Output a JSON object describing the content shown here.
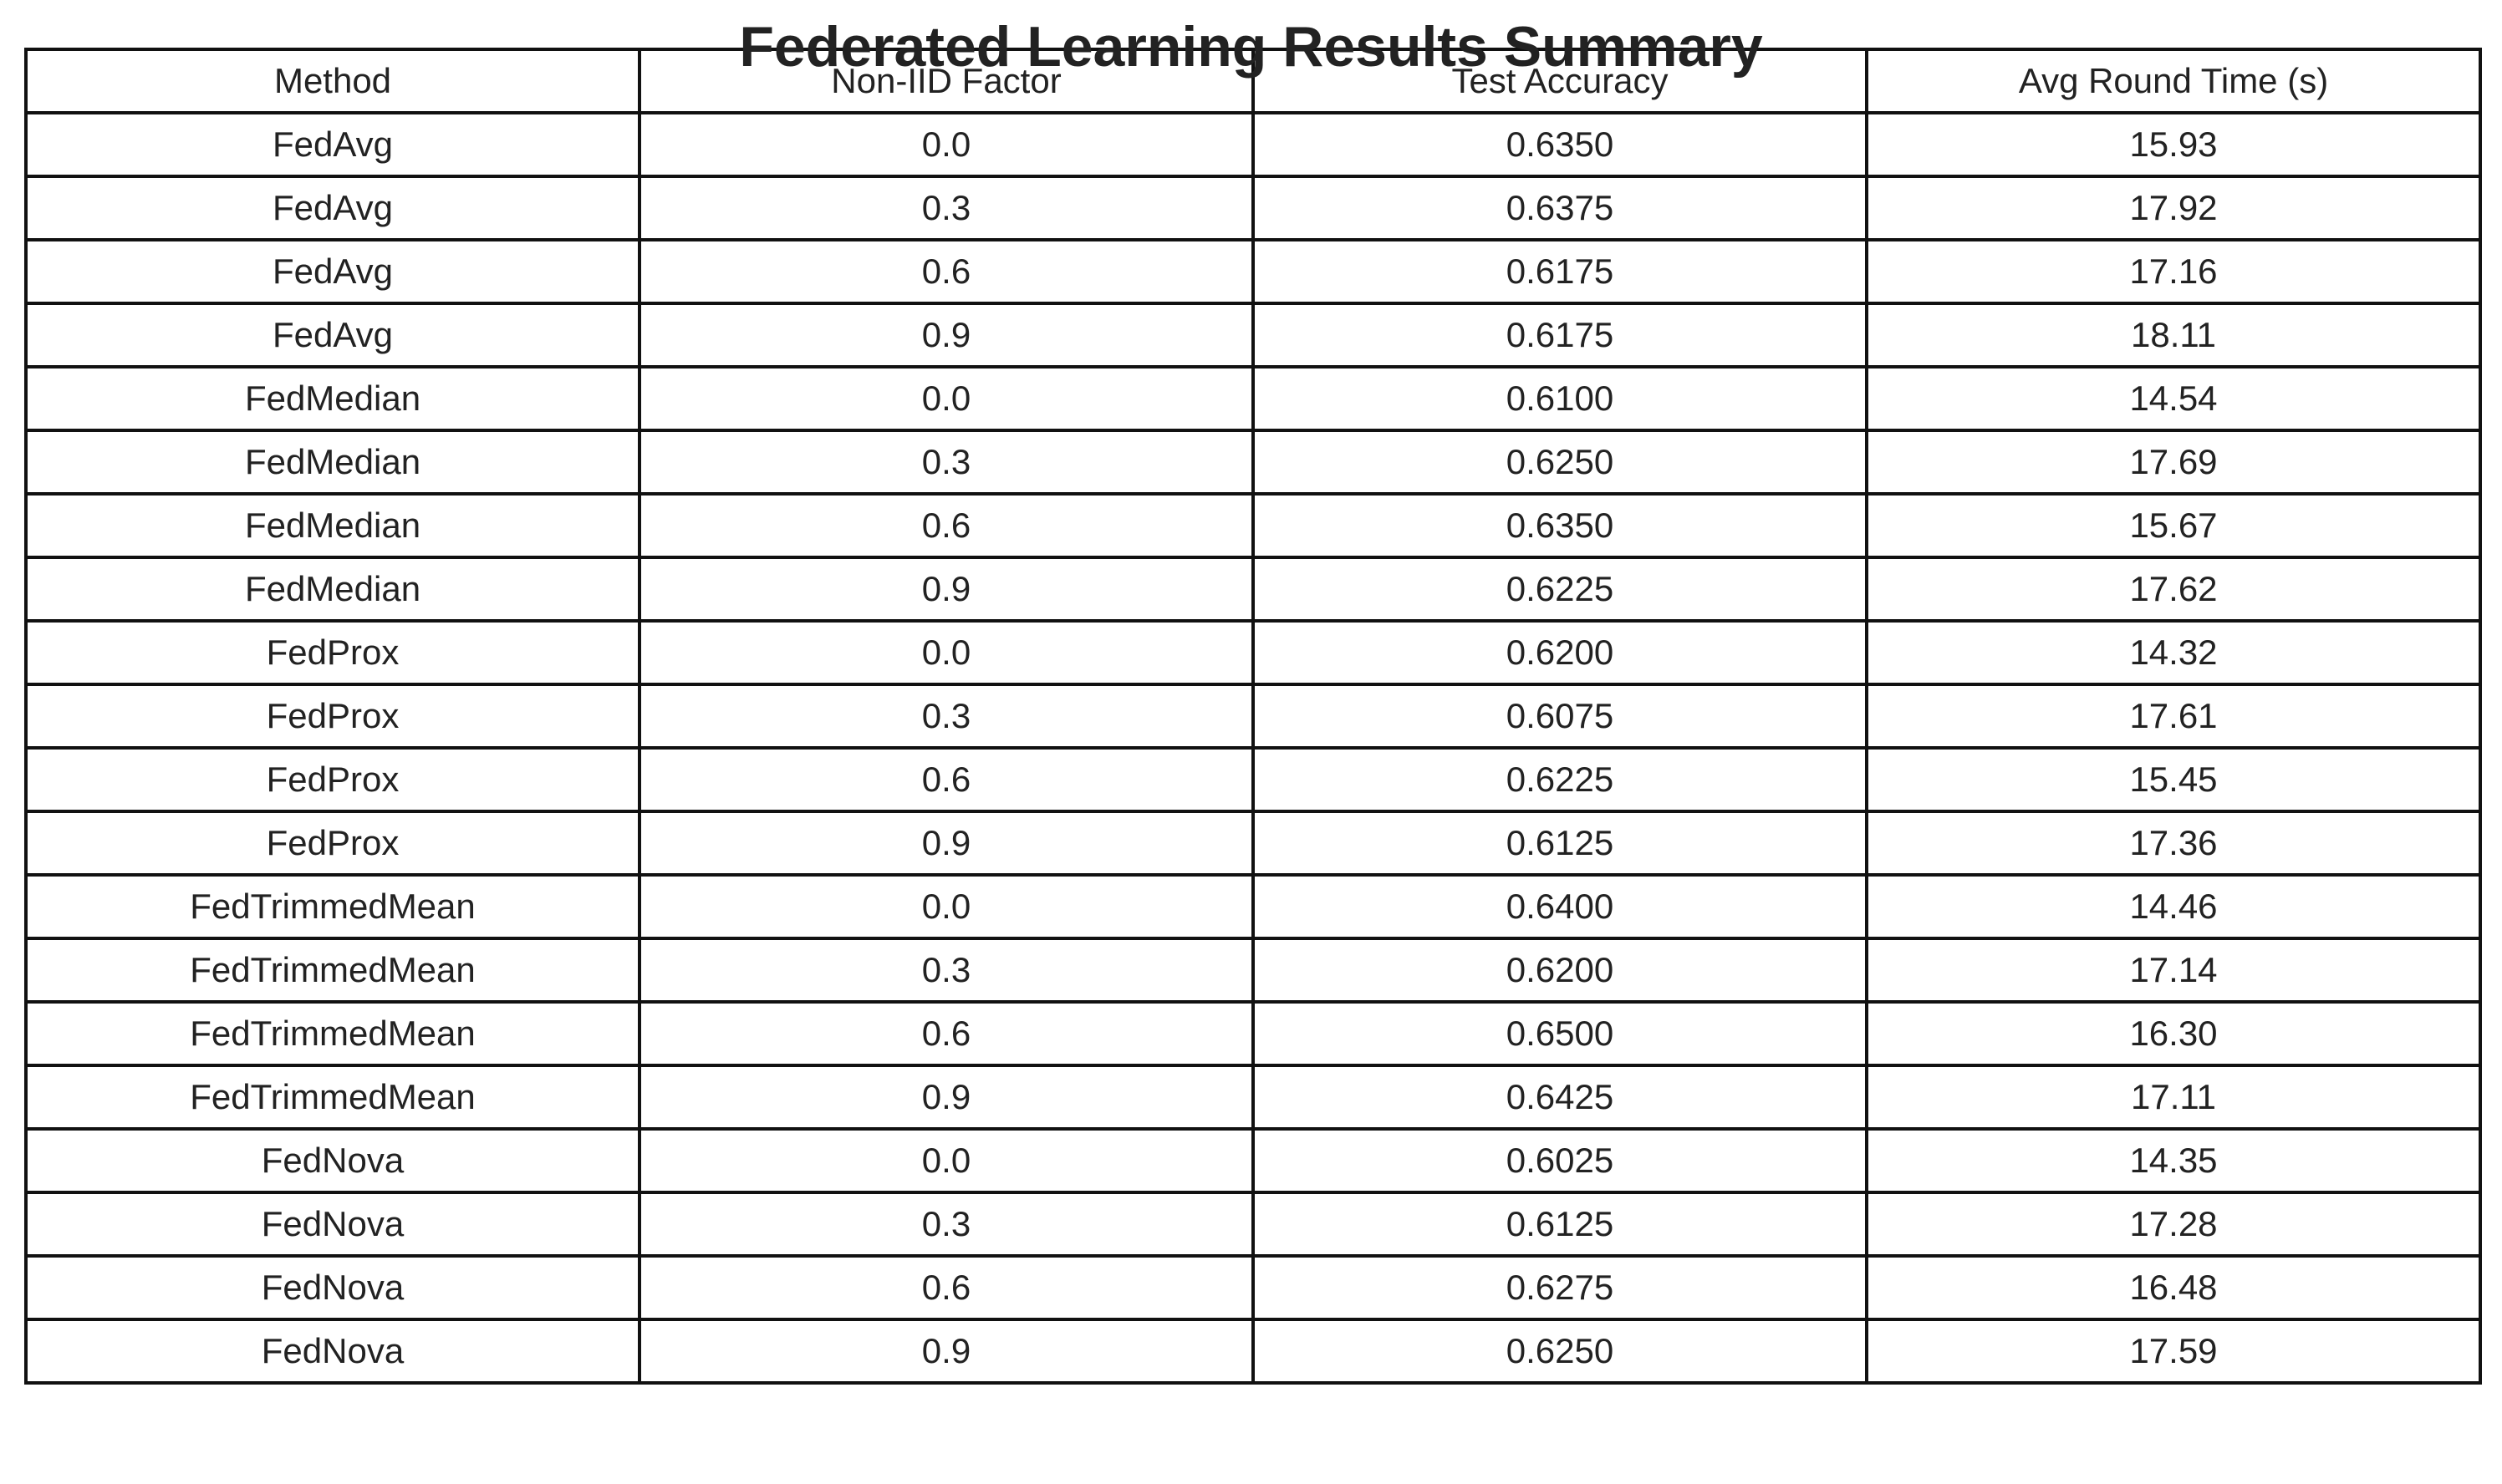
{
  "chart_data": {
    "type": "table",
    "title": "Federated Learning Results Summary",
    "columns": [
      "Method",
      "Non-IID Factor",
      "Test Accuracy",
      "Avg Round Time (s)"
    ],
    "rows": [
      [
        "FedAvg",
        "0.0",
        "0.6350",
        "15.93"
      ],
      [
        "FedAvg",
        "0.3",
        "0.6375",
        "17.92"
      ],
      [
        "FedAvg",
        "0.6",
        "0.6175",
        "17.16"
      ],
      [
        "FedAvg",
        "0.9",
        "0.6175",
        "18.11"
      ],
      [
        "FedMedian",
        "0.0",
        "0.6100",
        "14.54"
      ],
      [
        "FedMedian",
        "0.3",
        "0.6250",
        "17.69"
      ],
      [
        "FedMedian",
        "0.6",
        "0.6350",
        "15.67"
      ],
      [
        "FedMedian",
        "0.9",
        "0.6225",
        "17.62"
      ],
      [
        "FedProx",
        "0.0",
        "0.6200",
        "14.32"
      ],
      [
        "FedProx",
        "0.3",
        "0.6075",
        "17.61"
      ],
      [
        "FedProx",
        "0.6",
        "0.6225",
        "15.45"
      ],
      [
        "FedProx",
        "0.9",
        "0.6125",
        "17.36"
      ],
      [
        "FedTrimmedMean",
        "0.0",
        "0.6400",
        "14.46"
      ],
      [
        "FedTrimmedMean",
        "0.3",
        "0.6200",
        "17.14"
      ],
      [
        "FedTrimmedMean",
        "0.6",
        "0.6500",
        "16.30"
      ],
      [
        "FedTrimmedMean",
        "0.9",
        "0.6425",
        "17.11"
      ],
      [
        "FedNova",
        "0.0",
        "0.6025",
        "14.35"
      ],
      [
        "FedNova",
        "0.3",
        "0.6125",
        "17.28"
      ],
      [
        "FedNova",
        "0.6",
        "0.6275",
        "16.48"
      ],
      [
        "FedNova",
        "0.9",
        "0.6250",
        "17.59"
      ]
    ]
  }
}
